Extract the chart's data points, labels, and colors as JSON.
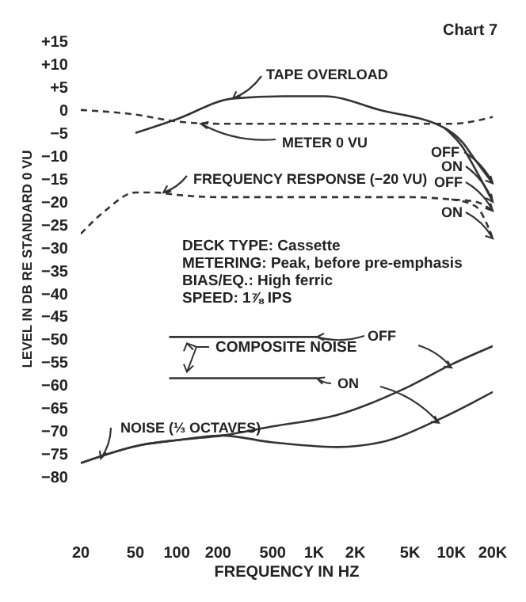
{
  "chart_data": {
    "type": "line",
    "title": "Chart 7",
    "xlabel": "FREQUENCY IN HZ",
    "ylabel": "LEVEL IN DB RE STANDARD 0 VU",
    "log": "x",
    "xlim": [
      20,
      20000
    ],
    "xticks": [
      20,
      50,
      100,
      200,
      500,
      {
        "value": 1000,
        "label": "1K"
      },
      {
        "value": 2000,
        "label": "2K"
      },
      {
        "value": 5000,
        "label": "5K"
      },
      {
        "value": 10000,
        "label": "10K"
      },
      {
        "value": 20000,
        "label": "20K"
      }
    ],
    "ylim": [
      -80,
      15
    ],
    "yticks": [
      {
        "value": 15,
        "label": "+15"
      },
      {
        "value": 10,
        "label": "+10"
      },
      {
        "value": 5,
        "label": "+5"
      },
      0,
      {
        "value": -5,
        "label": "−5"
      },
      {
        "value": -10,
        "label": "−10"
      },
      {
        "value": -15,
        "label": "−15"
      },
      {
        "value": -20,
        "label": "−20"
      },
      {
        "value": -25,
        "label": "−25"
      },
      {
        "value": -30,
        "label": "−30"
      },
      {
        "value": -35,
        "label": "−35"
      },
      {
        "value": -40,
        "label": "−40"
      },
      {
        "value": -45,
        "label": "−45"
      },
      {
        "value": -50,
        "label": "−50"
      },
      {
        "value": -55,
        "label": "−55"
      },
      {
        "value": -60,
        "label": "−60"
      },
      {
        "value": -65,
        "label": "−65"
      },
      {
        "value": -70,
        "label": "−70"
      },
      {
        "value": -75,
        "label": "−75"
      },
      {
        "value": -80,
        "label": "−80"
      }
    ],
    "series": [
      {
        "color": "#333333",
        "line_style": "solid",
        "x": [
          50,
          100,
          256,
          600,
          1190,
          3000,
          9000,
          12000,
          15000,
          20000
        ],
        "values": [
          -5,
          -2,
          2.5,
          3,
          3,
          0,
          -4,
          -7,
          -11,
          -16
        ]
      },
      {
        "color": "#333333",
        "line_style": "solid",
        "x": [
          9000,
          12000,
          15000,
          20000
        ],
        "values": [
          -4,
          -8,
          -13,
          -20
        ]
      },
      {
        "color": "#333333",
        "line_style": "dashed",
        "x": [
          20,
          50,
          100,
          200,
          1000,
          5000,
          10000,
          20000
        ],
        "values": [
          0,
          -1,
          -2.5,
          -3,
          -3,
          -3,
          -3,
          -1.5
        ]
      },
      {
        "color": "#333333",
        "line_style": "dashed",
        "x": [
          20,
          30,
          50,
          70,
          100,
          200,
          500,
          1000,
          5000,
          10000,
          15000,
          20000
        ],
        "values": [
          -27,
          -22,
          -18,
          -18,
          -18.5,
          -19,
          -19,
          -19,
          -19,
          -19.5,
          -20,
          -22
        ]
      },
      {
        "color": "#333333",
        "line_style": "dashed",
        "x": [
          10000,
          15000,
          20000
        ],
        "values": [
          -19.5,
          -21,
          -28
        ]
      },
      {
        "color": "#333333",
        "line_style": "solid",
        "x": [
          88,
          1050
        ],
        "values": [
          -49.5,
          -49.5
        ]
      },
      {
        "color": "#333333",
        "line_style": "solid",
        "x": [
          88,
          1050
        ],
        "values": [
          -58.5,
          -58.5
        ]
      },
      {
        "color": "#333333",
        "line_style": "solid",
        "x": [
          20,
          56,
          100,
          213,
          500,
          1480,
          4750,
          10000,
          20000
        ],
        "values": [
          -77,
          -73,
          -72,
          -71,
          -69,
          -66.5,
          -60.5,
          -55.5,
          -51.5
        ]
      },
      {
        "color": "#333333",
        "line_style": "solid",
        "x": [
          20,
          56,
          100,
          213,
          500,
          1480,
          3030,
          8090,
          20000
        ],
        "values": [
          -77,
          -73,
          -72,
          -71,
          -72.5,
          -73.5,
          -72.5,
          -67.5,
          -61.5
        ]
      }
    ],
    "annotations": [
      {
        "text": "TAPE OVERLOAD",
        "x": 256,
        "y": 2.5
      },
      {
        "text": "METER 0 VU",
        "x": 150,
        "y": -3
      },
      {
        "text": "FREQUENCY RESPONSE (−20 VU)",
        "x": 80,
        "y": -18
      },
      {
        "text": "OFF",
        "x": 20000,
        "y": -16
      },
      {
        "text": "ON",
        "x": 20000,
        "y": -20
      },
      {
        "text": "OFF",
        "x": 20000,
        "y": -22
      },
      {
        "text": "ON",
        "x": 20000,
        "y": -28
      },
      "COMPOSITE NOISE",
      "OFF",
      {
        "text": "ON",
        "x": 1050,
        "y": -58.5
      },
      {
        "text": "NOISE (⅓ OCTAVES)",
        "x": 28,
        "y": -76
      },
      "DECK TYPE: Cassette",
      "METERING: Peak, before pre-emphasis",
      "BIAS/EQ.: High ferric",
      "SPEED: 1⅞ IPS"
    ]
  }
}
